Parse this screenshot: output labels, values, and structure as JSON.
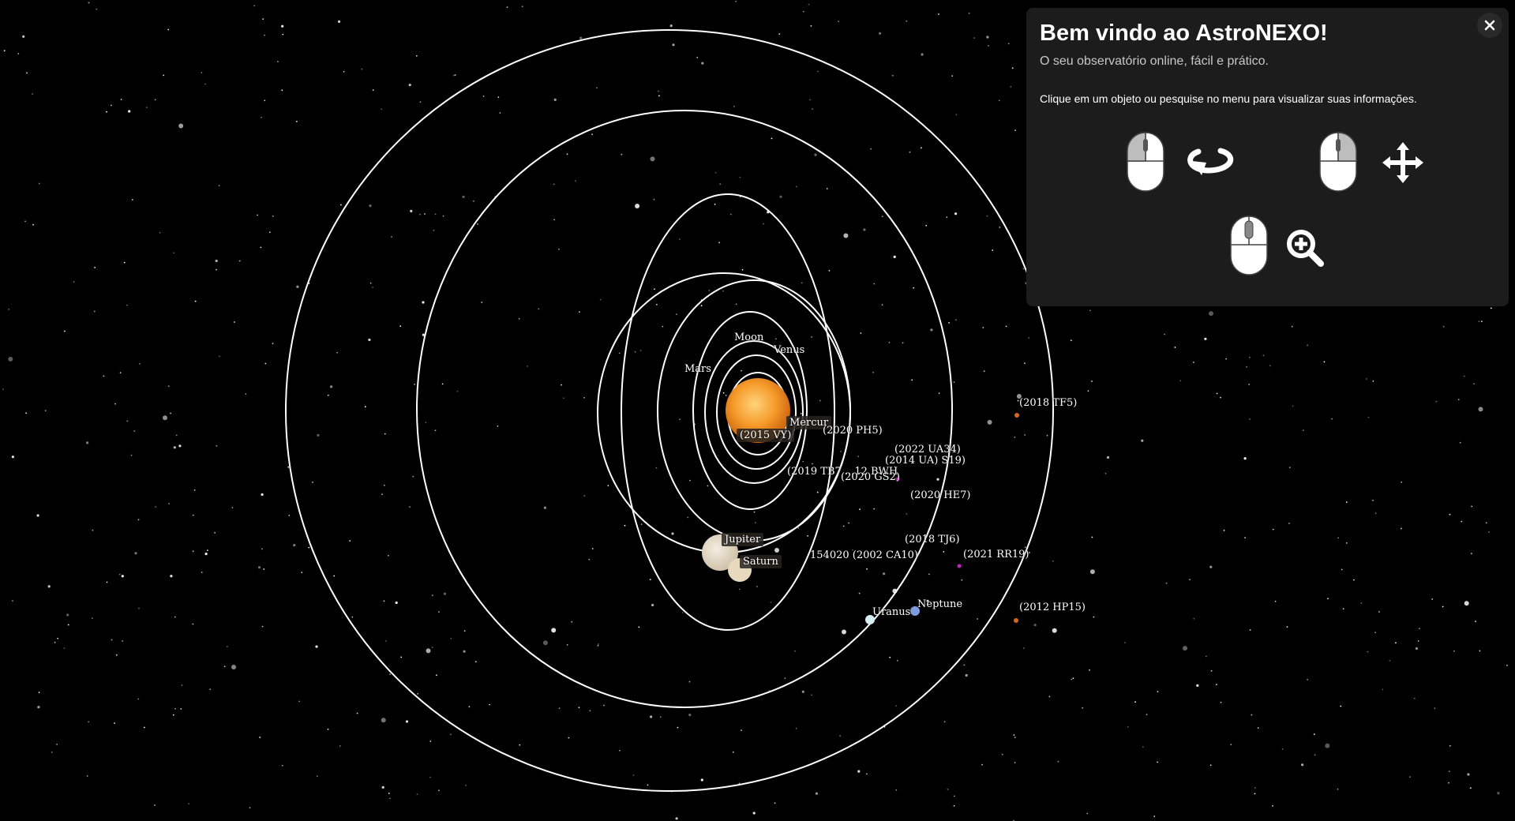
{
  "panel": {
    "title": "Bem vindo ao AstroNEXO!",
    "subtitle": "O seu observatório online, fácil e prático.",
    "hint": "Clique em um objeto ou pesquise no menu para visualizar suas informações.",
    "controls": [
      {
        "mouse_button": "left",
        "action_icon": "rotate-icon"
      },
      {
        "mouse_button": "right",
        "action_icon": "move-icon"
      },
      {
        "mouse_button": "middle",
        "action_icon": "zoom-in-icon"
      }
    ]
  },
  "labels": {
    "moon": "Moon",
    "venus": "Venus",
    "mars": "Mars",
    "mercury": "Mercur",
    "vy2015": "(2015 VY)",
    "ph5": "(2020 PH5)",
    "ua34": "(2022 UA34)",
    "s19": "(2014 UA) S19)",
    "tb7": "(2019 TB7 ...12 BWH",
    "gs2": "(2020 GS2)",
    "he7": "(2020 HE7)",
    "jupiter": "Jupiter",
    "saturn": "Saturn",
    "tj6": "(2018 TJ6)",
    "ca10": "154020 (2002 CA10)",
    "rr19": "(2021 RR19)",
    "uranus": "Uranus",
    "neptune": "Neptune",
    "tf5": "(2018 TF5)",
    "hp15": "(2012 HP15)"
  },
  "colors": {
    "background": "#000000",
    "panel_bg": "#1c1c1c",
    "orbit": "#ffffff",
    "sun": "#f08a1c",
    "asteroid": "#d2691e",
    "neo_marker": "#c020c0"
  }
}
